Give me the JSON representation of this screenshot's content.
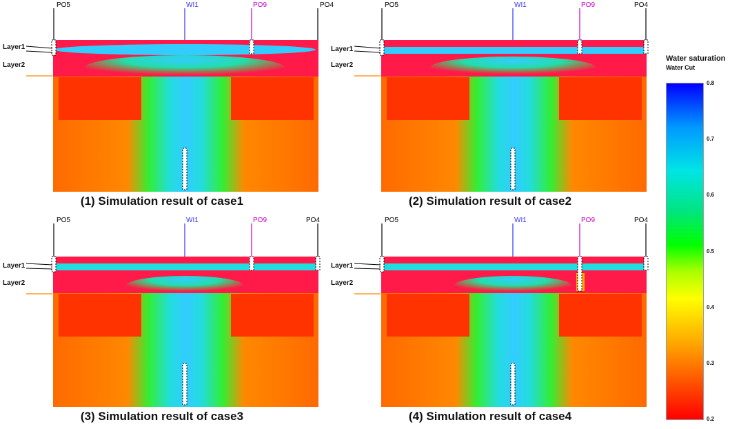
{
  "wells": {
    "po5": "PO5",
    "wi1": "WI1",
    "po9": "PO9",
    "po4": "PO4"
  },
  "layers": {
    "layer1": "Layer1",
    "layer2": "Layer2"
  },
  "panels": [
    {
      "caption": "(1) Simulation result of case1"
    },
    {
      "caption": "(2) Simulation result of case2"
    },
    {
      "caption": "(3) Simulation result of case3"
    },
    {
      "caption": "(4) Simulation result of case4"
    }
  ],
  "legend": {
    "title": "Water saturation",
    "subtitle": "Water Cut",
    "ticks": [
      "0.8",
      "0.7",
      "0.6",
      "0.5",
      "0.4",
      "0.3",
      "0.2"
    ],
    "range": [
      0.2,
      0.8
    ]
  },
  "colors": {
    "po9_well": "#cc00cc",
    "wi1_well": "#3333ff",
    "marker": "#ff8800",
    "high": "#0000ff",
    "low": "#ff0000"
  }
}
